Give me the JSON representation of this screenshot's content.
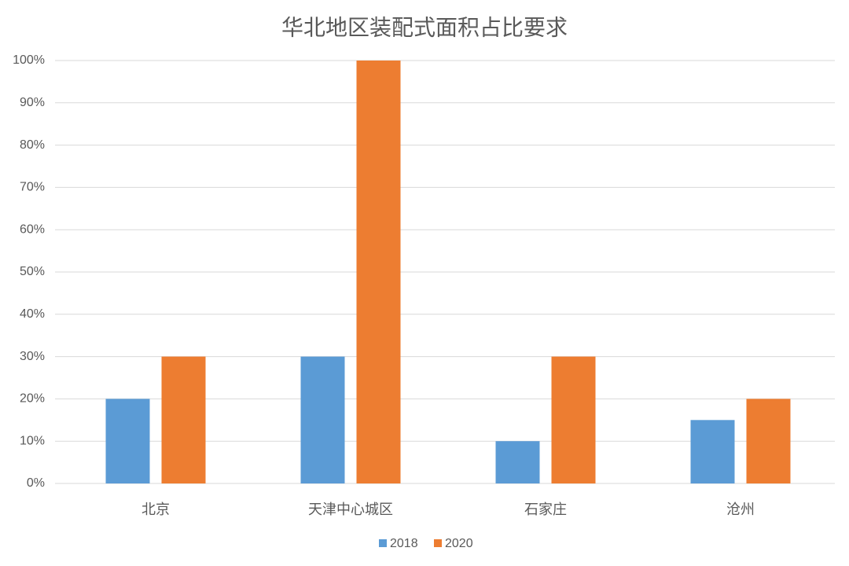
{
  "chart_data": {
    "type": "bar",
    "title": "华北地区装配式面积占比要求",
    "categories": [
      "北京",
      "天津中心城区",
      "石家庄",
      "沧州"
    ],
    "series": [
      {
        "name": "2018",
        "color": "#5b9bd5",
        "values": [
          20,
          30,
          10,
          15
        ]
      },
      {
        "name": "2020",
        "color": "#ed7d31",
        "values": [
          30,
          100,
          30,
          20
        ]
      }
    ],
    "ylim": [
      0,
      100
    ],
    "yticks": [
      {
        "value": 0,
        "label": "0%"
      },
      {
        "value": 10,
        "label": "10%"
      },
      {
        "value": 20,
        "label": "20%"
      },
      {
        "value": 30,
        "label": "30%"
      },
      {
        "value": 40,
        "label": "40%"
      },
      {
        "value": 50,
        "label": "50%"
      },
      {
        "value": 60,
        "label": "60%"
      },
      {
        "value": 70,
        "label": "70%"
      },
      {
        "value": 80,
        "label": "80%"
      },
      {
        "value": 90,
        "label": "90%"
      },
      {
        "value": 100,
        "label": "100%"
      }
    ],
    "grid": true,
    "legend": "bottom"
  }
}
